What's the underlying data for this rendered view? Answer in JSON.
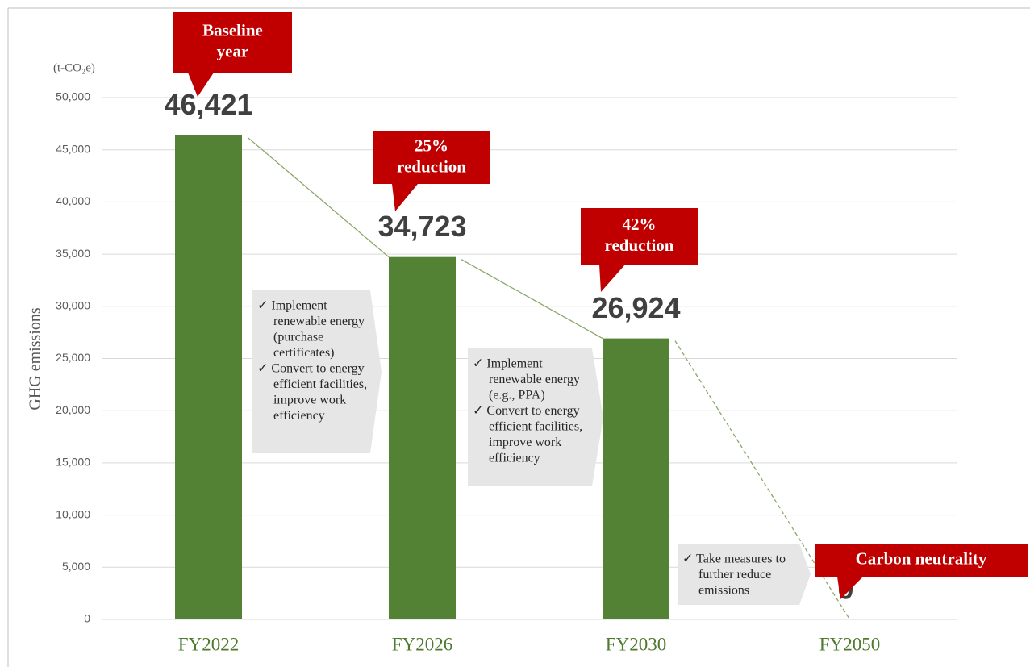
{
  "chart_data": {
    "type": "bar",
    "y_axis_label": "GHG emissions",
    "unit_label": "(t-CO₂e)",
    "categories": [
      "FY2022",
      "FY2026",
      "FY2030",
      "FY2050"
    ],
    "values": [
      46421,
      34723,
      26924,
      0
    ],
    "value_labels": [
      "46,421",
      "34,723",
      "26,924",
      "0"
    ],
    "color": "#548235",
    "trend_color": "#8aa86a",
    "ylim": [
      0,
      50000
    ],
    "yticks": [
      0,
      {
        "value": 5000,
        "label": "5,000"
      },
      {
        "value": 10000,
        "label": "10,000"
      },
      {
        "value": 15000,
        "label": "15,000"
      },
      {
        "value": 20000,
        "label": "20,000"
      },
      {
        "value": 25000,
        "label": "25,000"
      },
      {
        "value": 30000,
        "label": "30,000"
      },
      {
        "value": 35000,
        "label": "35,000"
      },
      {
        "value": 40000,
        "label": "40,000"
      },
      {
        "value": 45000,
        "label": "45,000"
      },
      {
        "value": 50000,
        "label": "50,000"
      }
    ],
    "grid": true,
    "callouts": [
      {
        "lines": [
          "Baseline",
          "year"
        ]
      },
      {
        "lines": [
          "25%",
          "reduction"
        ]
      },
      {
        "lines": [
          "42%",
          "reduction"
        ]
      },
      {
        "lines": [
          "Carbon neutrality"
        ]
      }
    ],
    "measures": [
      {
        "lines": [
          "✓ Implement",
          "renewable energy",
          "(purchase",
          "certificates)",
          "✓ Convert to energy",
          "efficient facilities,",
          "improve work",
          "efficiency"
        ]
      },
      {
        "lines": [
          "✓ Implement",
          "renewable energy",
          "(e.g., PPA)",
          "✓ Convert to energy",
          "efficient facilities,",
          "improve work",
          "efficiency"
        ]
      },
      {
        "lines": [
          "✓ Take measures to",
          "further reduce",
          "emissions"
        ]
      }
    ]
  }
}
